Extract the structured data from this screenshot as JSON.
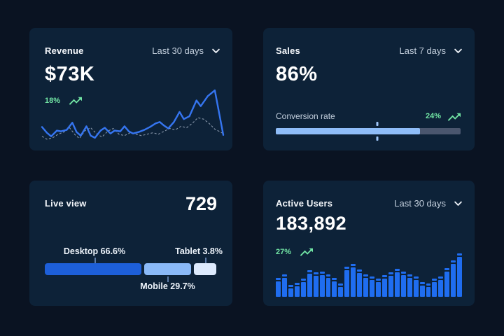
{
  "theme": {
    "page_bg": "#0a1322",
    "card_bg": "#0d2238",
    "line_blue": "#3575f0",
    "dashed_line": "#aebbcd",
    "bar_blue": "#1f6df0",
    "progress_fill": "#8fbdf8",
    "progress_track": "#4a566e",
    "green": "#72e6a5",
    "text_primary": "#ffffff",
    "text_secondary": "#c3cfdd"
  },
  "icons": {
    "dropdown": "chevron-down-icon",
    "trend": "trending-up-icon"
  },
  "cards": {
    "revenue": {
      "title": "Revenue",
      "period": "Last 30 days",
      "value": "$73K",
      "delta": "18%",
      "chart": {
        "type": "line",
        "series": [
          {
            "name": "current",
            "style": "solid",
            "points": [
              [
                2,
                55
              ],
              [
                9,
                63
              ],
              [
                15,
                68
              ],
              [
                23,
                60
              ],
              [
                29,
                61
              ],
              [
                37,
                59
              ],
              [
                45,
                49
              ],
              [
                51,
                62
              ],
              [
                57,
                67
              ],
              [
                65,
                54
              ],
              [
                71,
                67
              ],
              [
                77,
                70
              ],
              [
                85,
                60
              ],
              [
                91,
                56
              ],
              [
                99,
                64
              ],
              [
                105,
                60
              ],
              [
                113,
                61
              ],
              [
                119,
                54
              ],
              [
                125,
                61
              ],
              [
                131,
                64
              ],
              [
                139,
                62
              ],
              [
                147,
                59
              ],
              [
                155,
                55
              ],
              [
                163,
                50
              ],
              [
                169,
                48
              ],
              [
                175,
                53
              ],
              [
                181,
                57
              ],
              [
                189,
                48
              ],
              [
                197,
                34
              ],
              [
                203,
                44
              ],
              [
                211,
                40
              ],
              [
                221,
                18
              ],
              [
                227,
                26
              ],
              [
                237,
                12
              ],
              [
                247,
                4
              ],
              [
                259,
                66
              ]
            ]
          },
          {
            "name": "previous",
            "style": "dashed",
            "points": [
              [
                2,
                68
              ],
              [
                9,
                72
              ],
              [
                17,
                70
              ],
              [
                25,
                65
              ],
              [
                33,
                62
              ],
              [
                41,
                56
              ],
              [
                49,
                66
              ],
              [
                55,
                71
              ],
              [
                63,
                60
              ],
              [
                71,
                56
              ],
              [
                79,
                64
              ],
              [
                87,
                69
              ],
              [
                95,
                61
              ],
              [
                103,
                57
              ],
              [
                111,
                65
              ],
              [
                119,
                67
              ],
              [
                127,
                63
              ],
              [
                135,
                65
              ],
              [
                143,
                67
              ],
              [
                151,
                65
              ],
              [
                159,
                63
              ],
              [
                167,
                65
              ],
              [
                175,
                61
              ],
              [
                183,
                57
              ],
              [
                191,
                59
              ],
              [
                199,
                54
              ],
              [
                207,
                56
              ],
              [
                215,
                50
              ],
              [
                223,
                42
              ],
              [
                231,
                44
              ],
              [
                239,
                50
              ],
              [
                247,
                58
              ],
              [
                259,
                64
              ]
            ]
          }
        ]
      }
    },
    "sales": {
      "title": "Sales",
      "period": "Last 7 days",
      "value": "86%",
      "metric_label": "Conversion rate",
      "delta": "24%",
      "progress": {
        "percent": 78,
        "marker_percent": 55
      }
    },
    "live_view": {
      "title": "Live view",
      "value": "729",
      "segments": [
        {
          "name": "Desktop",
          "label": "Desktop 66.6%",
          "value": 66.6,
          "display_width": 56.2,
          "color": "#1d5fd9"
        },
        {
          "name": "Mobile",
          "label": "Mobile 29.7%",
          "value": 29.7,
          "display_width": 27.3,
          "color": "#8ab9f7"
        },
        {
          "name": "Tablet",
          "label": "Tablet 3.8%",
          "value": 3.8,
          "display_width": 12.7,
          "color": "#ddeafd"
        }
      ]
    },
    "active_users": {
      "title": "Active Users",
      "period": "Last 30 days",
      "value": "183,892",
      "delta": "27%",
      "chart": {
        "type": "bar",
        "values": [
          44,
          52,
          28,
          32,
          42,
          62,
          56,
          58,
          52,
          44,
          30,
          70,
          76,
          63,
          52,
          46,
          42,
          50,
          56,
          64,
          58,
          52,
          46,
          34,
          30,
          42,
          46,
          66,
          84,
          100
        ]
      }
    }
  }
}
